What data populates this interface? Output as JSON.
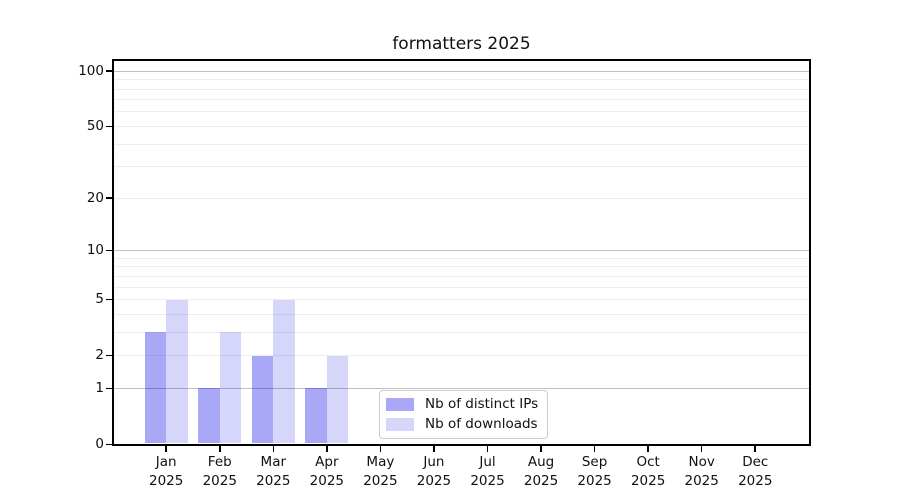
{
  "chart_data": {
    "type": "bar",
    "title": "formatters 2025",
    "categories": [
      "Jan",
      "Feb",
      "Mar",
      "Apr",
      "May",
      "Jun",
      "Jul",
      "Aug",
      "Sep",
      "Oct",
      "Nov",
      "Dec"
    ],
    "x_tick_second_line": "2025",
    "series": [
      {
        "name": "Nb of distinct IPs",
        "color": "rgba(0,0,230,0.34)",
        "values": [
          3,
          1,
          2,
          1,
          0,
          0,
          0,
          0,
          0,
          0,
          0,
          0
        ]
      },
      {
        "name": "Nb of downloads",
        "color": "rgba(0,0,230,0.16)",
        "values": [
          5,
          3,
          5,
          2,
          0,
          0,
          0,
          0,
          0,
          0,
          0,
          0
        ]
      }
    ],
    "y_axis": {
      "scale": "log10(value+1)",
      "tick_values": [
        0,
        1,
        2,
        5,
        10,
        20,
        50,
        100
      ],
      "major_gridlines": [
        1,
        10,
        100
      ],
      "minor_gridlines": [
        2,
        3,
        4,
        5,
        6,
        7,
        8,
        9,
        20,
        30,
        40,
        50,
        60,
        70,
        80,
        90
      ],
      "ylim": [
        0,
        115
      ]
    },
    "xlabel": "",
    "ylabel": "",
    "grid": "horizontal",
    "legend_position": "inside-lower-center-left",
    "colors": {
      "grid_major": "#c0c0c0",
      "grid_minor": "#eeeeee",
      "spine": "#000000",
      "text": "#111111",
      "legend_border": "#cccccc",
      "background": "#ffffff"
    }
  }
}
